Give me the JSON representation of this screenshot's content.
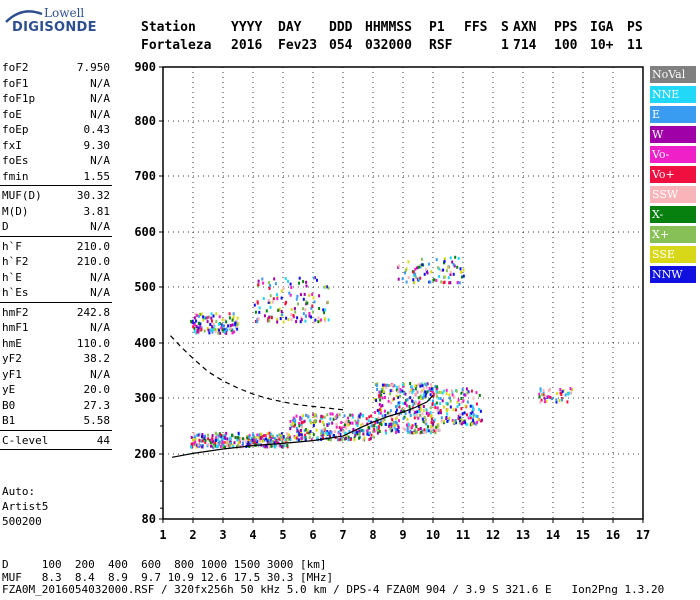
{
  "logo": {
    "line1": "Lowell",
    "line2": "DIGISONDE"
  },
  "header": {
    "labels": [
      "Station",
      "YYYY",
      "DAY",
      "DDD",
      "HHMMSS",
      "P1",
      "FFS",
      "S",
      "AXN",
      "PPS",
      "IGA",
      "PS"
    ],
    "values": [
      "Fortaleza",
      "2016",
      "Fev23",
      "054",
      "032000",
      "RSF",
      "",
      "1",
      "714",
      "100",
      "10+",
      "11"
    ]
  },
  "params": {
    "group1": [
      {
        "k": "foF2",
        "v": "7.950"
      },
      {
        "k": "foF1",
        "v": "N/A"
      },
      {
        "k": "foF1p",
        "v": "N/A"
      },
      {
        "k": "foE",
        "v": "N/A"
      },
      {
        "k": "foEp",
        "v": "0.43"
      },
      {
        "k": "fxI",
        "v": "9.30"
      },
      {
        "k": "foEs",
        "v": "N/A"
      },
      {
        "k": "fmin",
        "v": "1.55"
      }
    ],
    "group2": [
      {
        "k": "MUF(D)",
        "v": "30.32"
      },
      {
        "k": "M(D)",
        "v": "3.81"
      },
      {
        "k": "D",
        "v": "N/A"
      }
    ],
    "group3": [
      {
        "k": "h`F",
        "v": "210.0"
      },
      {
        "k": "h`F2",
        "v": "210.0"
      },
      {
        "k": "h`E",
        "v": "N/A"
      },
      {
        "k": "h`Es",
        "v": "N/A"
      }
    ],
    "group4": [
      {
        "k": "hmF2",
        "v": "242.8"
      },
      {
        "k": "hmF1",
        "v": "N/A"
      },
      {
        "k": "hmE",
        "v": "110.0"
      },
      {
        "k": "yF2",
        "v": "38.2"
      },
      {
        "k": "yF1",
        "v": "N/A"
      },
      {
        "k": "yE",
        "v": "20.0"
      },
      {
        "k": "B0",
        "v": "27.3"
      },
      {
        "k": "B1",
        "v": "5.58"
      }
    ],
    "group5": [
      {
        "k": "C-level",
        "v": "44"
      }
    ]
  },
  "auto": {
    "line1": "Auto:",
    "line2": "Artist5",
    "line3": "500200"
  },
  "footer": {
    "d_line": "D     100  200  400  600  800 1000 1500 3000 [km]",
    "muf_line": "MUF   8.3  8.4  8.9  9.7 10.9 12.6 17.5 30.3 [MHz]",
    "file_line": "FZA0M_2016054032000.RSF / 320fx256h 50 kHz 5.0 km / DPS-4 FZA0M 904 / 3.9 S 321.6 E   Ion2Png 1.3.20"
  },
  "legend": [
    {
      "label": "NoVal",
      "color": "#808080",
      "text": "#ffffff"
    },
    {
      "label": "NNE",
      "color": "#22d8f8",
      "text": "#ffffff"
    },
    {
      "label": "E",
      "color": "#3a9cf0",
      "text": "#ffffff"
    },
    {
      "label": "W",
      "color": "#a000a8",
      "text": "#ffffff"
    },
    {
      "label": "Vo-",
      "color": "#f020c8",
      "text": "#ffffff"
    },
    {
      "label": "Vo+",
      "color": "#f01040",
      "text": "#ffffff"
    },
    {
      "label": "SSW",
      "color": "#f8b4b8",
      "text": "#ffffff"
    },
    {
      "label": "X-",
      "color": "#088010",
      "text": "#ffffff"
    },
    {
      "label": "X+",
      "color": "#88c058",
      "text": "#ffffff"
    },
    {
      "label": "SSE",
      "color": "#d8d818",
      "text": "#ffffff"
    },
    {
      "label": "NNW",
      "color": "#1010e0",
      "text": "#ffffff"
    }
  ],
  "chart_data": {
    "type": "scatter",
    "xlim": [
      1,
      17
    ],
    "ylim": [
      80,
      900
    ],
    "x_ticks": [
      "1",
      "2",
      "3",
      "4",
      "5",
      "6",
      "7",
      "8",
      "9",
      "10",
      "11",
      "12",
      "13",
      "14",
      "15",
      "16",
      "17"
    ],
    "y_ticks": [
      "80",
      "200",
      "300",
      "400",
      "500",
      "600",
      "700",
      "800",
      "900"
    ],
    "y_tick_values": [
      80,
      200,
      300,
      400,
      500,
      600,
      700,
      800,
      900
    ],
    "minor_y_values": [
      100,
      150,
      250
    ],
    "series": [
      {
        "style": "solid",
        "points": [
          [
            1.3,
            194
          ],
          [
            2,
            201
          ],
          [
            3,
            209
          ],
          [
            4,
            215
          ],
          [
            5,
            219
          ],
          [
            6,
            224
          ],
          [
            7,
            232
          ],
          [
            7.5,
            245
          ],
          [
            8,
            257
          ],
          [
            8.5,
            267
          ],
          [
            9,
            275
          ],
          [
            9.4,
            283
          ],
          [
            9.8,
            293
          ],
          [
            10,
            305
          ]
        ]
      },
      {
        "style": "dashed",
        "points": [
          [
            1.25,
            413
          ],
          [
            1.6,
            393
          ],
          [
            2,
            372
          ],
          [
            2.5,
            348
          ],
          [
            3,
            331
          ],
          [
            3.5,
            318
          ],
          [
            4,
            307
          ],
          [
            4.5,
            299
          ],
          [
            5,
            293
          ],
          [
            5.5,
            288
          ],
          [
            6,
            285
          ],
          [
            6.5,
            282
          ],
          [
            7,
            279
          ]
        ]
      }
    ],
    "echo_clusters": [
      {
        "x": [
          1.9,
          5.2
        ],
        "h": [
          215,
          240
        ],
        "density": 320
      },
      {
        "x": [
          5.2,
          8.0
        ],
        "h": [
          228,
          275
        ],
        "density": 260
      },
      {
        "x": [
          8.0,
          10.2
        ],
        "h": [
          240,
          330
        ],
        "density": 360
      },
      {
        "x": [
          10.2,
          11.6
        ],
        "h": [
          255,
          320
        ],
        "density": 120
      },
      {
        "x": [
          1.9,
          3.5
        ],
        "h": [
          420,
          455
        ],
        "density": 120
      },
      {
        "x": [
          4.0,
          6.5
        ],
        "h": [
          440,
          520
        ],
        "density": 130
      },
      {
        "x": [
          8.8,
          11.0
        ],
        "h": [
          510,
          560
        ],
        "density": 80
      },
      {
        "x": [
          13.5,
          14.6
        ],
        "h": [
          295,
          320
        ],
        "density": 40
      }
    ]
  }
}
